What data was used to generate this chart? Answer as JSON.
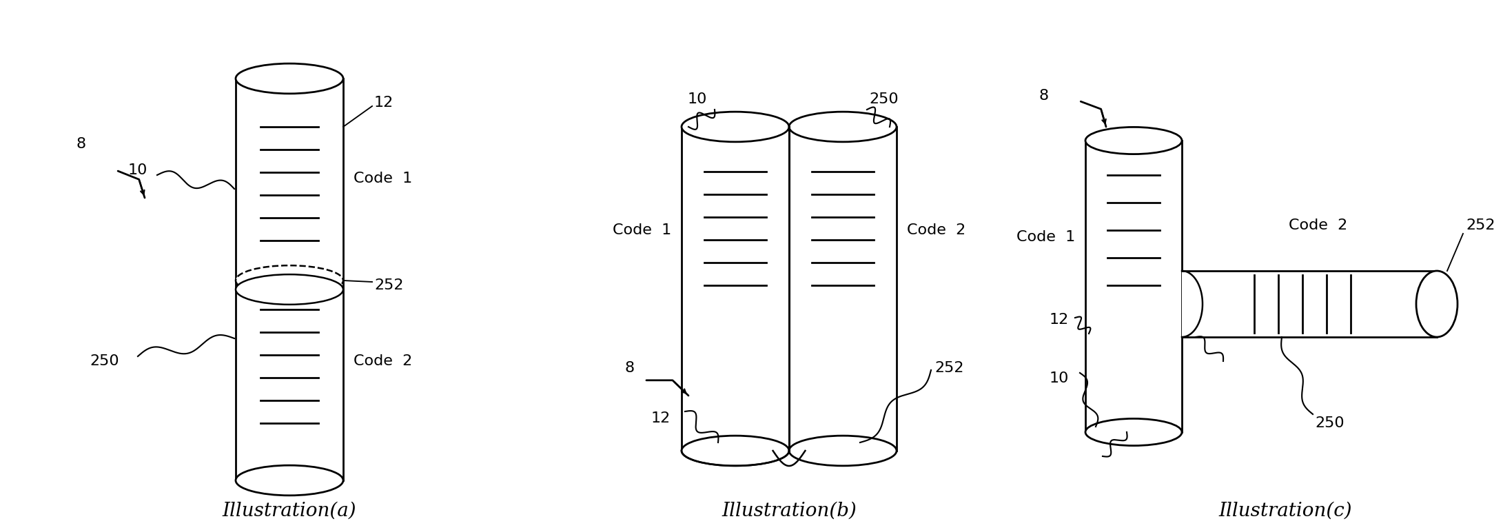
{
  "bg_color": "#ffffff",
  "line_color": "#000000",
  "title_a": "Illustration(a)",
  "title_b": "Illustration(b)",
  "title_c": "Illustration(c)",
  "title_fontsize": 20,
  "label_fontsize": 16,
  "figsize": [
    21.81,
    7.69
  ],
  "dpi": 100,
  "lw": 1.8,
  "lw_thick": 2.0
}
